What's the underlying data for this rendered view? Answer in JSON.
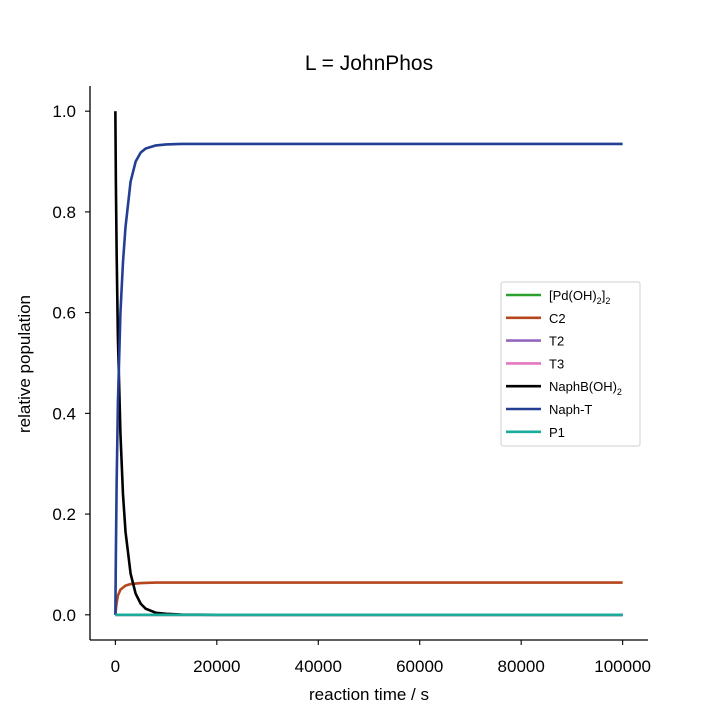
{
  "chart_data": {
    "type": "line",
    "title": "L = JohnPhos",
    "xlabel": "reaction time / s",
    "ylabel": "relative population",
    "xlim": [
      -5000,
      105000
    ],
    "ylim": [
      -0.05,
      1.05
    ],
    "xticks": [
      0,
      20000,
      40000,
      60000,
      80000,
      100000
    ],
    "xtick_labels": [
      "0",
      "20000",
      "40000",
      "60000",
      "80000",
      "100000"
    ],
    "yticks": [
      0.0,
      0.2,
      0.4,
      0.6,
      0.8,
      1.0
    ],
    "ytick_labels": [
      "0.0",
      "0.2",
      "0.4",
      "0.6",
      "0.8",
      "1.0"
    ],
    "grid": false,
    "legend_position": "right-center",
    "series": [
      {
        "name": "[Pd(OH)2]2",
        "label_base": "[Pd(OH)",
        "label_sub": "2",
        "label_mid": "]",
        "label_sub2": "2",
        "color": "#2ca02c",
        "x": [
          0,
          100000
        ],
        "y": [
          0.0,
          0.0
        ]
      },
      {
        "name": "C2",
        "label_base": "C2",
        "color": "#b5461f",
        "x": [
          0,
          200,
          500,
          1000,
          2000,
          3000,
          5000,
          8000,
          12000,
          20000,
          50000,
          100000
        ],
        "y": [
          0.0,
          0.02,
          0.038,
          0.05,
          0.058,
          0.061,
          0.063,
          0.064,
          0.064,
          0.064,
          0.064,
          0.064
        ]
      },
      {
        "name": "T2",
        "label_base": "T2",
        "color": "#9467bd",
        "x": [
          0,
          100000
        ],
        "y": [
          0.0,
          0.0
        ]
      },
      {
        "name": "T3",
        "label_base": "T3",
        "color": "#e377c2",
        "x": [
          0,
          100000
        ],
        "y": [
          0.0,
          0.0
        ]
      },
      {
        "name": "NaphB(OH)2",
        "label_base": "NaphB(OH)",
        "label_sub": "2",
        "color": "#000000",
        "x": [
          0,
          100,
          250,
          500,
          1000,
          1500,
          2000,
          3000,
          4000,
          5000,
          6000,
          8000,
          10000,
          13000,
          20000,
          50000,
          100000
        ],
        "y": [
          1.0,
          0.86,
          0.72,
          0.55,
          0.36,
          0.24,
          0.165,
          0.082,
          0.042,
          0.022,
          0.012,
          0.004,
          0.002,
          0.0005,
          0.0,
          0.0,
          0.0
        ]
      },
      {
        "name": "Naph-T",
        "label_base": "Naph-T",
        "color": "#233f94",
        "x": [
          0,
          100,
          250,
          500,
          1000,
          1500,
          2000,
          3000,
          4000,
          5000,
          6000,
          8000,
          10000,
          13000,
          20000,
          50000,
          100000
        ],
        "y": [
          0.0,
          0.12,
          0.26,
          0.42,
          0.6,
          0.7,
          0.77,
          0.86,
          0.9,
          0.918,
          0.926,
          0.932,
          0.934,
          0.935,
          0.935,
          0.935,
          0.935
        ]
      },
      {
        "name": "P1",
        "label_base": "P1",
        "color": "#1aab9b",
        "x": [
          0,
          100000
        ],
        "y": [
          0.0,
          0.0
        ]
      }
    ]
  }
}
